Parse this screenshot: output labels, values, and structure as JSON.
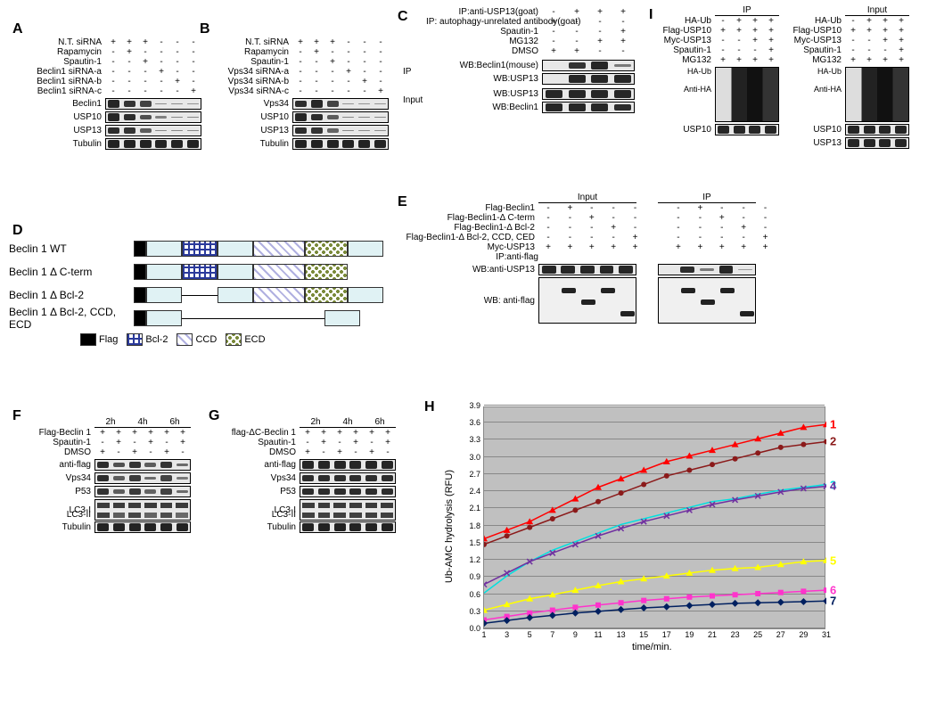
{
  "panel_labels": {
    "A": "A",
    "B": "B",
    "C": "C",
    "D": "D",
    "E": "E",
    "F": "F",
    "G": "G",
    "H": "H",
    "I": "I"
  },
  "A": {
    "treatments": [
      "N.T. siRNA",
      "Rapamycin",
      "Spautin-1",
      "Beclin1 siRNA-a",
      "Beclin1 siRNA-b",
      "Beclin1 siRNA-c"
    ],
    "matrix": [
      [
        "+",
        "+",
        "+",
        "-",
        "-",
        "-"
      ],
      [
        "-",
        "+",
        "-",
        "-",
        "-",
        "-"
      ],
      [
        "-",
        "-",
        "+",
        "-",
        "-",
        "-"
      ],
      [
        "-",
        "-",
        "-",
        "+",
        "-",
        "-"
      ],
      [
        "-",
        "-",
        "-",
        "-",
        "+",
        "-"
      ],
      [
        "-",
        "-",
        "-",
        "-",
        "-",
        "+"
      ]
    ],
    "blots": [
      {
        "name": "Beclin1",
        "lanes": [
          0.9,
          0.8,
          0.7,
          0.15,
          0.15,
          0.1
        ]
      },
      {
        "name": "USP10",
        "lanes": [
          0.9,
          0.85,
          0.6,
          0.25,
          0.2,
          0.2
        ]
      },
      {
        "name": "USP13",
        "lanes": [
          0.85,
          0.8,
          0.5,
          0.2,
          0.2,
          0.2
        ]
      },
      {
        "name": "Tubulin",
        "lanes": [
          0.95,
          0.95,
          0.95,
          0.95,
          0.95,
          0.95
        ]
      }
    ],
    "label_w": 90,
    "lane_w": 18
  },
  "B": {
    "treatments": [
      "N.T. siRNA",
      "Rapamycin",
      "Spautin-1",
      "Vps34 siRNA-a",
      "Vps34 siRNA-b",
      "Vps34 siRNA-c"
    ],
    "matrix": [
      [
        "+",
        "+",
        "+",
        "-",
        "-",
        "-"
      ],
      [
        "-",
        "+",
        "-",
        "-",
        "-",
        "-"
      ],
      [
        "-",
        "-",
        "+",
        "-",
        "-",
        "-"
      ],
      [
        "-",
        "-",
        "-",
        "+",
        "-",
        "-"
      ],
      [
        "-",
        "-",
        "-",
        "-",
        "+",
        "-"
      ],
      [
        "-",
        "-",
        "-",
        "-",
        "-",
        "+"
      ]
    ],
    "blots": [
      {
        "name": "Vps34",
        "lanes": [
          0.85,
          0.9,
          0.7,
          0.1,
          0.1,
          0.1
        ]
      },
      {
        "name": "USP10",
        "lanes": [
          0.9,
          0.85,
          0.5,
          0.2,
          0.2,
          0.2
        ]
      },
      {
        "name": "USP13",
        "lanes": [
          0.85,
          0.8,
          0.45,
          0.2,
          0.15,
          0.15
        ]
      },
      {
        "name": "Tubulin",
        "lanes": [
          0.95,
          0.95,
          0.95,
          0.95,
          0.95,
          0.95
        ]
      }
    ],
    "label_w": 90,
    "lane_w": 18
  },
  "C": {
    "treatments": [
      "IP:anti-USP13(goat)",
      "IP: autophagy-unrelated antibody(goat)",
      "Spautin-1",
      "MG132",
      "DMSO"
    ],
    "matrix": [
      [
        "-",
        "+",
        "+",
        "+"
      ],
      [
        "+",
        "-",
        "-",
        "-"
      ],
      [
        "-",
        "-",
        "-",
        "+"
      ],
      [
        "-",
        "-",
        "+",
        "+"
      ],
      [
        "+",
        "+",
        "-",
        "-"
      ]
    ],
    "ip_blots": [
      {
        "name": "WB:Beclin1(mouse)",
        "lanes": [
          0.0,
          0.8,
          0.9,
          0.3
        ]
      },
      {
        "name": "WB:USP13",
        "lanes": [
          0.0,
          0.9,
          0.9,
          0.9
        ]
      }
    ],
    "input_blots": [
      {
        "name": "WB:USP13",
        "lanes": [
          0.9,
          0.9,
          0.9,
          0.9
        ]
      },
      {
        "name": "WB:Beclin1",
        "lanes": [
          0.9,
          0.9,
          0.9,
          0.85
        ]
      }
    ],
    "side_ip": "IP",
    "side_input": "Input",
    "label_w": 130,
    "lane_w": 26
  },
  "D": {
    "rows": [
      "Beclin 1 WT",
      "Beclin 1 Δ C-term",
      "Beclin 1 Δ Bcl-2",
      "Beclin 1 Δ Bcl-2, CCD, ECD"
    ],
    "legend": [
      "Flag",
      "Bcl-2",
      "CCD",
      "ECD"
    ],
    "domain_colors": {
      "Flag": "#000000",
      "Bcl2_fill": "#ffffff",
      "CCD_fill": "#e8e8ff",
      "ECD_fill": "#d8e8c8",
      "spacer": "#e0f2f4"
    },
    "domain_specs": [
      [
        "Flag",
        "spacer",
        "Bcl2",
        "spacer",
        "CCD",
        "ECD",
        "spacer"
      ],
      [
        "Flag",
        "spacer",
        "Bcl2",
        "spacer",
        "CCD",
        "ECD"
      ],
      [
        "Flag",
        "spacer",
        "line",
        "spacer",
        "CCD",
        "ECD",
        "spacer"
      ],
      [
        "Flag",
        "spacer",
        "line",
        "line",
        "line",
        "line",
        "spacer"
      ]
    ]
  },
  "E": {
    "header_input": "Input",
    "header_ip": "IP",
    "treatments": [
      "Flag-Beclin1",
      "Flag-Beclin1-Δ C-term",
      "Flag-Beclin1-Δ Bcl-2",
      "Flag-Beclin1-Δ Bcl-2, CCD, CED",
      "Myc-USP13"
    ],
    "matrix_half": [
      [
        "-",
        "+",
        "-",
        "-",
        "-"
      ],
      [
        "-",
        "-",
        "+",
        "-",
        "-"
      ],
      [
        "-",
        "-",
        "-",
        "+",
        "-"
      ],
      [
        "-",
        "-",
        "-",
        "-",
        "+"
      ],
      [
        "+",
        "+",
        "+",
        "+",
        "+"
      ]
    ],
    "row_labels": {
      "ip": "IP:anti-flag",
      "wb_usp13": "WB:anti-USP13",
      "wb_flag": "WB: anti-flag"
    },
    "blot_usp13_input": [
      0.9,
      0.9,
      0.9,
      0.9,
      0.9
    ],
    "blot_usp13_ip": [
      0.0,
      0.85,
      0.3,
      0.9,
      0.05
    ],
    "flag_positions_input": [
      null,
      0.25,
      0.55,
      0.25,
      0.85
    ],
    "flag_positions_ip": [
      null,
      0.25,
      0.55,
      0.25,
      0.85
    ],
    "label_w": 150,
    "lane_w": 22
  },
  "F": {
    "time_labels": [
      "2h",
      "4h",
      "6h"
    ],
    "treatments": [
      "Flag-Beclin 1",
      "Spautin-1",
      "DMSO"
    ],
    "matrix": [
      [
        "+",
        "+",
        "+",
        "+",
        "+",
        "+"
      ],
      [
        "-",
        "+",
        "-",
        "+",
        "-",
        "+"
      ],
      [
        "+",
        "-",
        "+",
        "-",
        "+",
        "-"
      ]
    ],
    "blots": [
      {
        "name": "anti-flag",
        "lanes": [
          0.85,
          0.6,
          0.8,
          0.5,
          0.8,
          0.4
        ]
      },
      {
        "name": "Vps34",
        "lanes": [
          0.85,
          0.5,
          0.75,
          0.4,
          0.7,
          0.3
        ]
      },
      {
        "name": "P53",
        "lanes": [
          0.8,
          0.5,
          0.75,
          0.45,
          0.7,
          0.4
        ]
      },
      {
        "name": "LC3-I",
        "lanes": [
          0.8,
          0.8,
          0.8,
          0.8,
          0.8,
          0.8
        ]
      },
      {
        "name": "LC3-II",
        "lanes": [
          0.75,
          0.5,
          0.7,
          0.45,
          0.65,
          0.4
        ]
      },
      {
        "name": "Tubulin",
        "lanes": [
          0.95,
          0.95,
          0.95,
          0.95,
          0.95,
          0.95
        ]
      }
    ],
    "label_w": 80,
    "lane_w": 18
  },
  "G": {
    "time_labels": [
      "2h",
      "4h",
      "6h"
    ],
    "treatments": [
      "flag-ΔC-Beclin 1",
      "Spautin-1",
      "DMSO"
    ],
    "matrix": [
      [
        "+",
        "+",
        "+",
        "+",
        "+",
        "+"
      ],
      [
        "-",
        "+",
        "-",
        "+",
        "-",
        "+"
      ],
      [
        "+",
        "-",
        "+",
        "-",
        "+",
        "-"
      ]
    ],
    "blots": [
      {
        "name": "anti-flag",
        "lanes": [
          0.9,
          0.9,
          0.9,
          0.9,
          0.9,
          0.9
        ]
      },
      {
        "name": "Vps34",
        "lanes": [
          0.85,
          0.85,
          0.85,
          0.85,
          0.85,
          0.85
        ]
      },
      {
        "name": "P53",
        "lanes": [
          0.85,
          0.85,
          0.85,
          0.85,
          0.85,
          0.85
        ]
      },
      {
        "name": "LC3-I",
        "lanes": [
          0.8,
          0.8,
          0.8,
          0.8,
          0.8,
          0.8
        ]
      },
      {
        "name": "LC3-II",
        "lanes": [
          0.75,
          0.75,
          0.75,
          0.75,
          0.75,
          0.75
        ]
      },
      {
        "name": "Tubulin",
        "lanes": [
          0.95,
          0.95,
          0.95,
          0.95,
          0.95,
          0.95
        ]
      }
    ],
    "label_w": 90,
    "lane_w": 18
  },
  "H": {
    "ylabel": "Ub-AMC hydrolysis (RFU)",
    "xlabel": "time/min.",
    "ylim": [
      0,
      3.9
    ],
    "ytick_step": 0.3,
    "xticks": [
      1,
      3,
      5,
      7,
      9,
      11,
      13,
      15,
      17,
      19,
      21,
      23,
      25,
      27,
      29,
      31
    ],
    "xlim": [
      1,
      31
    ],
    "bg": "#c0c0c0",
    "grid": "#888888",
    "series": [
      {
        "id": "1",
        "color": "#ff0000",
        "marker": "triangle",
        "data": [
          [
            1,
            1.6
          ],
          [
            3,
            1.75
          ],
          [
            5,
            1.9
          ],
          [
            7,
            2.1
          ],
          [
            9,
            2.3
          ],
          [
            11,
            2.5
          ],
          [
            13,
            2.65
          ],
          [
            15,
            2.8
          ],
          [
            17,
            2.95
          ],
          [
            19,
            3.05
          ],
          [
            21,
            3.15
          ],
          [
            23,
            3.25
          ],
          [
            25,
            3.35
          ],
          [
            27,
            3.45
          ],
          [
            29,
            3.55
          ],
          [
            31,
            3.6
          ]
        ]
      },
      {
        "id": "2",
        "color": "#8b1a1a",
        "marker": "circle",
        "data": [
          [
            1,
            1.5
          ],
          [
            3,
            1.65
          ],
          [
            5,
            1.8
          ],
          [
            7,
            1.95
          ],
          [
            9,
            2.1
          ],
          [
            11,
            2.25
          ],
          [
            13,
            2.4
          ],
          [
            15,
            2.55
          ],
          [
            17,
            2.7
          ],
          [
            19,
            2.8
          ],
          [
            21,
            2.9
          ],
          [
            23,
            3.0
          ],
          [
            25,
            3.1
          ],
          [
            27,
            3.2
          ],
          [
            29,
            3.25
          ],
          [
            31,
            3.3
          ]
        ]
      },
      {
        "id": "3",
        "color": "#00e0e0",
        "marker": "none",
        "data": [
          [
            1,
            0.65
          ],
          [
            3,
            0.95
          ],
          [
            5,
            1.2
          ],
          [
            7,
            1.4
          ],
          [
            9,
            1.55
          ],
          [
            11,
            1.7
          ],
          [
            13,
            1.85
          ],
          [
            15,
            1.95
          ],
          [
            17,
            2.05
          ],
          [
            19,
            2.15
          ],
          [
            21,
            2.25
          ],
          [
            23,
            2.3
          ],
          [
            25,
            2.38
          ],
          [
            27,
            2.45
          ],
          [
            29,
            2.5
          ],
          [
            31,
            2.55
          ]
        ]
      },
      {
        "id": "4",
        "color": "#7030a0",
        "marker": "x",
        "data": [
          [
            1,
            0.8
          ],
          [
            3,
            1.0
          ],
          [
            5,
            1.2
          ],
          [
            7,
            1.35
          ],
          [
            9,
            1.5
          ],
          [
            11,
            1.65
          ],
          [
            13,
            1.78
          ],
          [
            15,
            1.9
          ],
          [
            17,
            2.0
          ],
          [
            19,
            2.1
          ],
          [
            21,
            2.2
          ],
          [
            23,
            2.28
          ],
          [
            25,
            2.35
          ],
          [
            27,
            2.42
          ],
          [
            29,
            2.48
          ],
          [
            31,
            2.52
          ]
        ]
      },
      {
        "id": "5",
        "color": "#ffff00",
        "marker": "triangle",
        "data": [
          [
            1,
            0.35
          ],
          [
            3,
            0.45
          ],
          [
            5,
            0.55
          ],
          [
            7,
            0.62
          ],
          [
            9,
            0.7
          ],
          [
            11,
            0.78
          ],
          [
            13,
            0.85
          ],
          [
            15,
            0.9
          ],
          [
            17,
            0.95
          ],
          [
            19,
            1.0
          ],
          [
            21,
            1.05
          ],
          [
            23,
            1.08
          ],
          [
            25,
            1.1
          ],
          [
            27,
            1.15
          ],
          [
            29,
            1.2
          ],
          [
            31,
            1.22
          ]
        ]
      },
      {
        "id": "6",
        "color": "#ff33cc",
        "marker": "square",
        "data": [
          [
            1,
            0.18
          ],
          [
            3,
            0.24
          ],
          [
            5,
            0.3
          ],
          [
            7,
            0.35
          ],
          [
            9,
            0.4
          ],
          [
            11,
            0.44
          ],
          [
            13,
            0.48
          ],
          [
            15,
            0.52
          ],
          [
            17,
            0.55
          ],
          [
            19,
            0.58
          ],
          [
            21,
            0.6
          ],
          [
            23,
            0.62
          ],
          [
            25,
            0.64
          ],
          [
            27,
            0.66
          ],
          [
            29,
            0.68
          ],
          [
            31,
            0.7
          ]
        ]
      },
      {
        "id": "7",
        "color": "#002060",
        "marker": "diamond",
        "data": [
          [
            1,
            0.12
          ],
          [
            3,
            0.17
          ],
          [
            5,
            0.22
          ],
          [
            7,
            0.26
          ],
          [
            9,
            0.3
          ],
          [
            11,
            0.33
          ],
          [
            13,
            0.36
          ],
          [
            15,
            0.39
          ],
          [
            17,
            0.41
          ],
          [
            19,
            0.43
          ],
          [
            21,
            0.45
          ],
          [
            23,
            0.47
          ],
          [
            25,
            0.48
          ],
          [
            27,
            0.49
          ],
          [
            29,
            0.5
          ],
          [
            31,
            0.51
          ]
        ]
      }
    ]
  },
  "I": {
    "headers": [
      "IP",
      "Input"
    ],
    "treatments": [
      "HA-Ub",
      "Flag-USP10",
      "Myc-USP13",
      "Spautin-1",
      "MG132"
    ],
    "matrix_col": [
      [
        "-",
        "+",
        "+",
        "+"
      ],
      [
        "+",
        "+",
        "+",
        "+"
      ],
      [
        "-",
        "-",
        "+",
        "+"
      ],
      [
        "-",
        "-",
        "-",
        "+"
      ],
      [
        "+",
        "+",
        "+",
        "+"
      ]
    ],
    "side_labels": {
      "ha": "HA-Ub",
      "anti": "Anti-HA",
      "usp10": "USP10",
      "usp13": "USP13"
    },
    "label_w": 62,
    "lane_w": 18
  }
}
